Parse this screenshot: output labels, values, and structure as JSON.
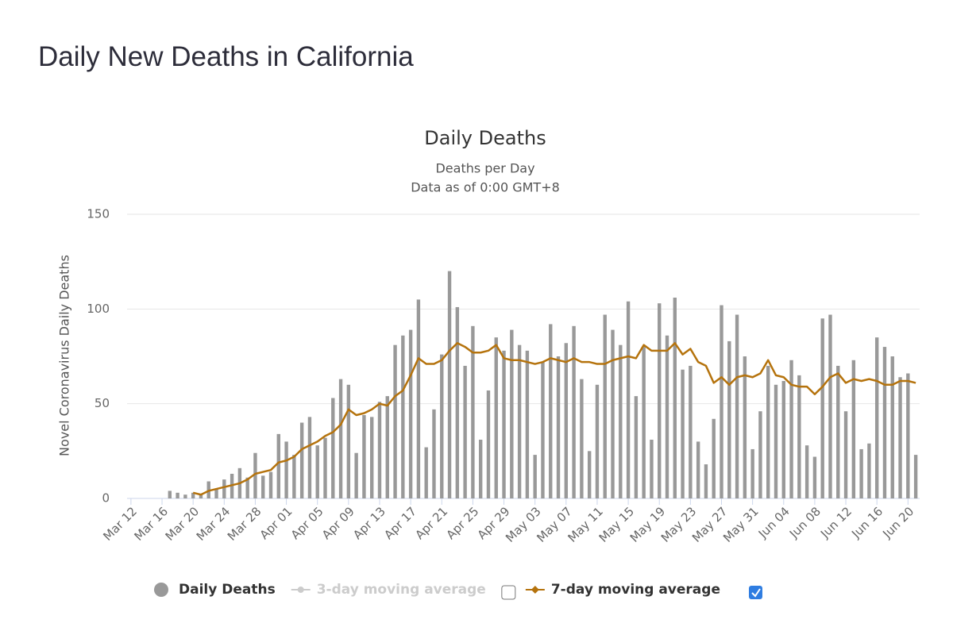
{
  "heading": "Daily New Deaths in California",
  "chart_data": {
    "type": "bar",
    "title": "Daily Deaths",
    "subtitle": [
      "Deaths per Day",
      "Data as of 0:00 GMT+8"
    ],
    "y_label": "Novel Coronavirus Daily Deaths",
    "categories": [
      "Mar 12",
      null,
      null,
      null,
      "Mar 16",
      null,
      null,
      null,
      "Mar 20",
      null,
      null,
      null,
      "Mar 24",
      null,
      null,
      null,
      "Mar 28",
      null,
      null,
      null,
      "Apr 01",
      null,
      null,
      null,
      "Apr 05",
      null,
      null,
      null,
      "Apr 09",
      null,
      null,
      null,
      "Apr 13",
      null,
      null,
      null,
      "Apr 17",
      null,
      null,
      null,
      "Apr 21",
      null,
      null,
      null,
      "Apr 25",
      null,
      null,
      null,
      "Apr 29",
      null,
      null,
      null,
      "May 03",
      null,
      null,
      null,
      "May 07",
      null,
      null,
      null,
      "May 11",
      null,
      null,
      null,
      "May 15",
      null,
      null,
      null,
      "May 19",
      null,
      null,
      null,
      "May 23",
      null,
      null,
      null,
      "May 27",
      null,
      null,
      null,
      "May 31",
      null,
      null,
      null,
      "Jun 04",
      null,
      null,
      null,
      "Jun 08",
      null,
      null,
      null,
      "Jun 12",
      null,
      null,
      null,
      "Jun 16",
      null,
      null,
      null,
      "Jun 20",
      null
    ],
    "series": [
      {
        "name": "Daily Deaths",
        "color": "#999999",
        "kind": "bar",
        "values": [
          0,
          0,
          0,
          0,
          0,
          4,
          3,
          2,
          3,
          2,
          9,
          5,
          10,
          13,
          16,
          11,
          24,
          12,
          14,
          34,
          30,
          23,
          40,
          43,
          28,
          32,
          53,
          63,
          60,
          24,
          44,
          43,
          51,
          54,
          81,
          86,
          89,
          105,
          27,
          47,
          76,
          120,
          101,
          70,
          91,
          31,
          57,
          85,
          78,
          89,
          81,
          78,
          23,
          72,
          92,
          75,
          82,
          91,
          63,
          25,
          60,
          97,
          89,
          81,
          104,
          54,
          80,
          31,
          103,
          86,
          106,
          68,
          70,
          30,
          18,
          42,
          102,
          83,
          97,
          75,
          26,
          46,
          70,
          60,
          62,
          73,
          65,
          28,
          22,
          95,
          97,
          70,
          46,
          73,
          26,
          29,
          85,
          80,
          75,
          64,
          66,
          23
        ]
      },
      {
        "name": "3-day moving average",
        "color": "#cccccc",
        "kind": "line",
        "checked": false
      },
      {
        "name": "7-day moving average",
        "color": "#b5730d",
        "kind": "line",
        "checked": true,
        "values": [
          null,
          null,
          null,
          null,
          null,
          null,
          null,
          null,
          3,
          2,
          4,
          5,
          6,
          7,
          8,
          10,
          13,
          14,
          15,
          19,
          20,
          22,
          26,
          28,
          30,
          33,
          35,
          39,
          47,
          44,
          45,
          47,
          50,
          49,
          54,
          57,
          65,
          74,
          71,
          71,
          73,
          78,
          82,
          80,
          77,
          77,
          78,
          81,
          74,
          73,
          73,
          72,
          71,
          72,
          74,
          73,
          72,
          74,
          72,
          72,
          71,
          71,
          73,
          74,
          75,
          74,
          81,
          78,
          78,
          78,
          82,
          76,
          79,
          72,
          70,
          61,
          64,
          60,
          64,
          65,
          64,
          66,
          73,
          65,
          64,
          60,
          59,
          59,
          55,
          59,
          64,
          66,
          61,
          63,
          62,
          63,
          62,
          60,
          60,
          62,
          62,
          61
        ]
      }
    ],
    "ylim": [
      0,
      150
    ],
    "yticks": [
      0,
      50,
      100,
      150
    ],
    "grid": true
  }
}
